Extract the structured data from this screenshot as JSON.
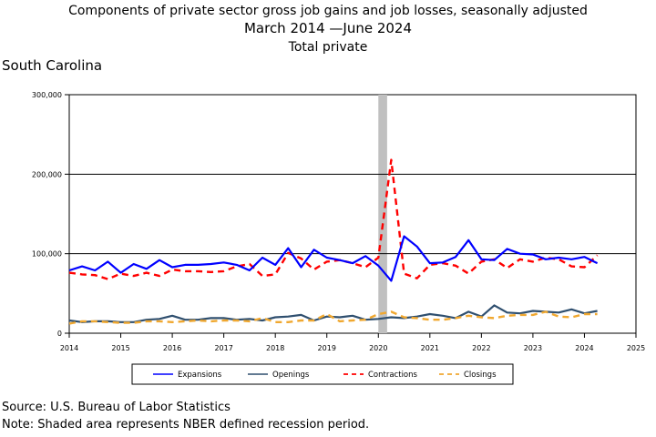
{
  "header": {
    "title": "Components of private sector gross job gains and job losses, seasonally adjusted",
    "period": "March 2014 —June 2024",
    "subtitle": "Total private",
    "region": "South Carolina"
  },
  "footer": {
    "source": "Source: U.S. Bureau of Labor Statistics",
    "note": "Note: Shaded area represents NBER defined recession period."
  },
  "chart_data": {
    "type": "line",
    "title": "Components of private sector gross job gains and job losses, seasonally adjusted",
    "xlim": [
      2014,
      2025
    ],
    "ylim": [
      0,
      300000
    ],
    "x_ticks": [
      "2014",
      "2015",
      "2016",
      "2017",
      "2018",
      "2019",
      "2020",
      "2021",
      "2022",
      "2023",
      "2024",
      "2025"
    ],
    "y_ticks": [
      "0",
      "100,000",
      "200,000",
      "300,000"
    ],
    "gridlines_y": [
      100000,
      200000
    ],
    "legend_position": "bottom",
    "recession": {
      "start": 2020.0,
      "end": 2020.17,
      "color": "#c0c0c0"
    },
    "x": [
      2014.0,
      2014.25,
      2014.5,
      2014.75,
      2015.0,
      2015.25,
      2015.5,
      2015.75,
      2016.0,
      2016.25,
      2016.5,
      2016.75,
      2017.0,
      2017.25,
      2017.5,
      2017.75,
      2018.0,
      2018.25,
      2018.5,
      2018.75,
      2019.0,
      2019.25,
      2019.5,
      2019.75,
      2020.0,
      2020.25,
      2020.5,
      2020.75,
      2021.0,
      2021.25,
      2021.5,
      2021.75,
      2022.0,
      2022.25,
      2022.5,
      2022.75,
      2023.0,
      2023.25,
      2023.5,
      2023.75,
      2024.0,
      2024.25
    ],
    "series": [
      {
        "name": "Expansions",
        "color": "#0000ff",
        "dash": "solid",
        "width": 2.2,
        "values": [
          79000,
          84000,
          79000,
          90000,
          76000,
          87000,
          81000,
          92000,
          83000,
          86000,
          86000,
          87000,
          89000,
          86000,
          79000,
          95000,
          86000,
          107000,
          83000,
          105000,
          95000,
          92000,
          88000,
          97000,
          85000,
          66000,
          122000,
          109000,
          88000,
          89000,
          96000,
          117000,
          93000,
          92000,
          106000,
          100000,
          99000,
          93000,
          95000,
          93000,
          96000,
          88000
        ]
      },
      {
        "name": "Openings",
        "color": "#2f4f6f",
        "dash": "solid",
        "width": 2.2,
        "values": [
          16000,
          14000,
          15000,
          15000,
          14000,
          14000,
          17000,
          18000,
          22000,
          17000,
          17000,
          19000,
          19000,
          17000,
          18000,
          16000,
          20000,
          21000,
          23000,
          16000,
          21000,
          20000,
          22000,
          17000,
          18000,
          20000,
          19000,
          21000,
          24000,
          22000,
          19000,
          27000,
          21000,
          35000,
          26000,
          25000,
          28000,
          27000,
          26000,
          30000,
          25000,
          28000
        ]
      },
      {
        "name": "Contractions",
        "color": "#ff0000",
        "dash": "dashed",
        "width": 2.4,
        "values": [
          76000,
          74000,
          73000,
          68000,
          75000,
          72000,
          76000,
          72000,
          80000,
          78000,
          78000,
          77000,
          78000,
          84000,
          87000,
          72000,
          74000,
          101000,
          94000,
          80000,
          90000,
          92000,
          88000,
          83000,
          95000,
          218000,
          75000,
          69000,
          86000,
          88000,
          85000,
          75000,
          90000,
          93000,
          82000,
          93000,
          90000,
          95000,
          93000,
          84000,
          83000,
          98000
        ]
      },
      {
        "name": "Closings",
        "color": "#f0a830",
        "dash": "dashed",
        "width": 2.4,
        "values": [
          12000,
          15000,
          15000,
          14000,
          13000,
          13000,
          15000,
          15000,
          14000,
          15000,
          16000,
          15000,
          16000,
          16000,
          15000,
          19000,
          14000,
          14000,
          16000,
          16000,
          24000,
          15000,
          16000,
          17000,
          24000,
          27000,
          20000,
          19000,
          17000,
          17000,
          19000,
          22000,
          20000,
          19000,
          22000,
          23000,
          23000,
          27000,
          21000,
          20000,
          24000,
          24000
        ]
      }
    ]
  }
}
